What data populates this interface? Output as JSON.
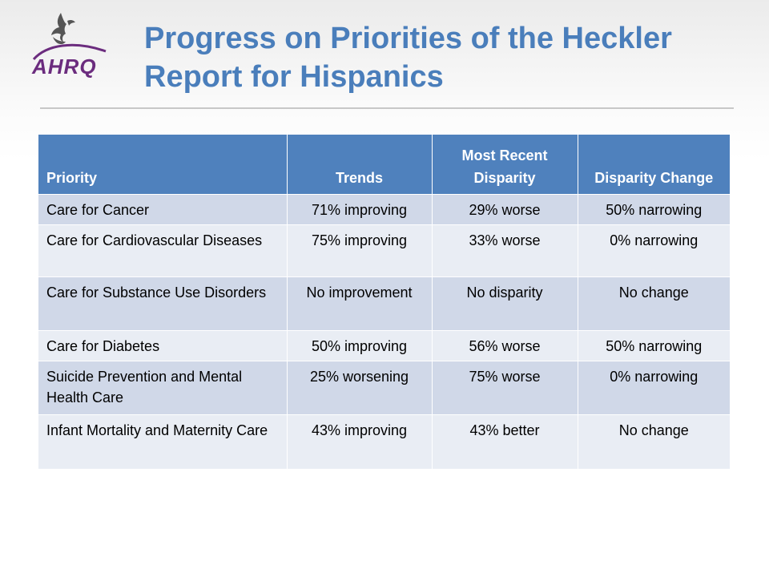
{
  "slide": {
    "title_line1": "Progress on Priorities of the Heckler",
    "title_line2": "Report for Hispanics",
    "logo_text": "AHRQ"
  },
  "table": {
    "headers": [
      "Priority",
      "Trends",
      "Most Recent Disparity",
      "Disparity Change"
    ],
    "rows": [
      [
        "Care for Cancer",
        "71% improving",
        "29% worse",
        "50% narrowing"
      ],
      [
        "Care for Cardiovascular Diseases",
        "75% improving",
        "33% worse",
        "0% narrowing"
      ],
      [
        "Care for Substance Use Disorders",
        "No improvement",
        "No disparity",
        "No change"
      ],
      [
        "Care for Diabetes",
        "50% improving",
        "56% worse",
        "50% narrowing"
      ],
      [
        "Suicide Prevention and Mental Health Care",
        "25% worsening",
        "75% worse",
        "0% narrowing"
      ],
      [
        "Infant Mortality and Maternity Care",
        "43% improving",
        "43% better",
        "No change"
      ]
    ]
  },
  "colors": {
    "title": "#4a7ebb",
    "header_bg": "#4f81bd",
    "row_odd": "#d0d8e8",
    "row_even": "#e9edf4",
    "logo_purple": "#6b2c7e"
  },
  "icons": [
    "hhs-eagle-icon",
    "ahrq-logo"
  ]
}
